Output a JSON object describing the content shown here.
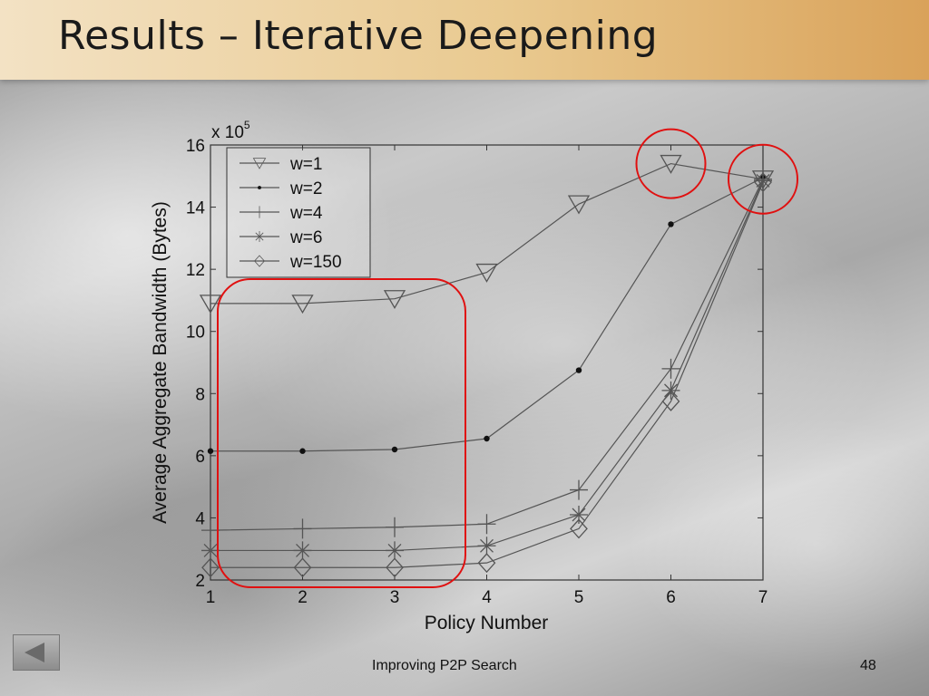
{
  "slide": {
    "title": "Results – Iterative Deepening",
    "footer": "Improving P2P Search",
    "slide_number": "48",
    "nav_icon": "back-arrow-icon"
  },
  "chart_data": {
    "type": "line",
    "xlabel": "Policy Number",
    "ylabel": "Average Aggregate Bandwidth (Bytes)",
    "y_multiplier_label": "x 10",
    "y_multiplier_exp": "5",
    "x": [
      1,
      2,
      3,
      4,
      5,
      6,
      7
    ],
    "xlim": [
      1,
      7
    ],
    "ylim": [
      2,
      16
    ],
    "x_ticks": [
      "1",
      "2",
      "3",
      "4",
      "5",
      "6",
      "7"
    ],
    "y_ticks": [
      "2",
      "4",
      "6",
      "8",
      "10",
      "12",
      "14",
      "16"
    ],
    "grid": false,
    "legend_position": "top-left",
    "series": [
      {
        "name": "w=1",
        "marker": "triangle-down",
        "values": [
          10.9,
          10.9,
          11.05,
          11.9,
          14.1,
          15.4,
          14.9
        ]
      },
      {
        "name": "w=2",
        "marker": "dot",
        "values": [
          6.15,
          6.15,
          6.2,
          6.55,
          8.75,
          13.45,
          14.95
        ]
      },
      {
        "name": "w=4",
        "marker": "plus",
        "values": [
          3.6,
          3.65,
          3.7,
          3.8,
          4.9,
          8.8,
          14.9
        ]
      },
      {
        "name": "w=6",
        "marker": "star",
        "values": [
          2.95,
          2.95,
          2.95,
          3.1,
          4.1,
          8.1,
          14.85
        ]
      },
      {
        "name": "w=150",
        "marker": "diamond",
        "values": [
          2.4,
          2.4,
          2.4,
          2.55,
          3.65,
          7.75,
          14.8
        ]
      }
    ],
    "highlight_color": "#e01010",
    "line_color": "#555555"
  }
}
